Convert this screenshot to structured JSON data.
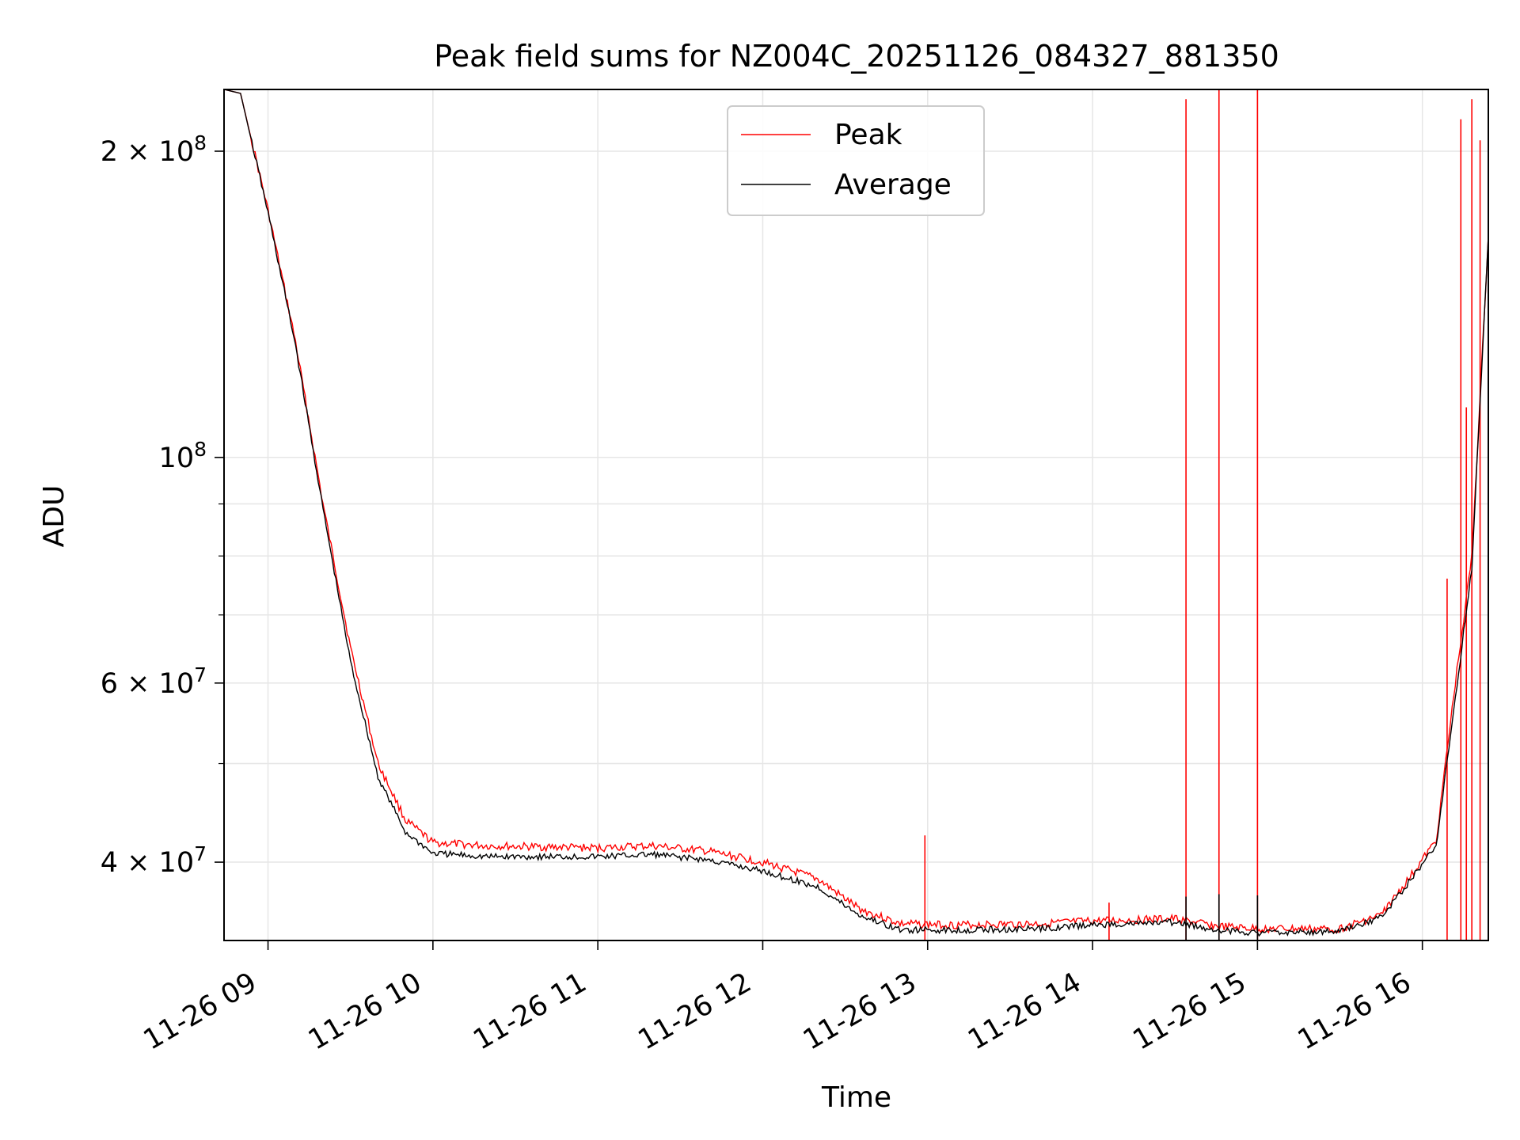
{
  "chart_data": {
    "type": "line",
    "title": "Peak field sums for NZ004C_20251126_084327_881350",
    "xlabel": "Time",
    "ylabel": "ADU",
    "y_scale": "log",
    "ylim": [
      33500000,
      230000000
    ],
    "xlim": [
      "2025-11-26 08:44",
      "2025-11-26 16:24"
    ],
    "grid": true,
    "legend_position": "upper center",
    "x_ticks": [
      {
        "value": "2025-11-26 09:00",
        "label": "11-26 09"
      },
      {
        "value": "2025-11-26 10:00",
        "label": "11-26 10"
      },
      {
        "value": "2025-11-26 11:00",
        "label": "11-26 11"
      },
      {
        "value": "2025-11-26 12:00",
        "label": "11-26 12"
      },
      {
        "value": "2025-11-26 13:00",
        "label": "11-26 13"
      },
      {
        "value": "2025-11-26 14:00",
        "label": "11-26 14"
      },
      {
        "value": "2025-11-26 15:00",
        "label": "11-26 15"
      },
      {
        "value": "2025-11-26 16:00",
        "label": "11-26 16"
      }
    ],
    "y_ticks": [
      {
        "value": 40000000,
        "mantissa": "4",
        "exponent": "7"
      },
      {
        "value": 60000000,
        "mantissa": "6",
        "exponent": "7"
      },
      {
        "value": 100000000,
        "mantissa": "",
        "exponent": "8"
      },
      {
        "value": 200000000,
        "mantissa": "2",
        "exponent": "8"
      }
    ],
    "y_minor_ticks": [
      50000000,
      70000000,
      80000000,
      90000000
    ],
    "series": [
      {
        "name": "Peak",
        "color": "#ff0000",
        "points": [
          [
            "2025-11-26 08:44",
            230000000
          ],
          [
            "2025-11-26 08:50",
            228000000
          ],
          [
            "2025-11-26 09:00",
            175000000
          ],
          [
            "2025-11-26 09:10",
            130000000
          ],
          [
            "2025-11-26 09:20",
            90000000
          ],
          [
            "2025-11-26 09:30",
            65000000
          ],
          [
            "2025-11-26 09:40",
            50000000
          ],
          [
            "2025-11-26 09:50",
            44000000
          ],
          [
            "2025-11-26 10:00",
            41800000
          ],
          [
            "2025-11-26 10:20",
            41500000
          ],
          [
            "2025-11-26 10:40",
            41400000
          ],
          [
            "2025-11-26 11:00",
            41300000
          ],
          [
            "2025-11-26 11:20",
            41500000
          ],
          [
            "2025-11-26 11:40",
            41000000
          ],
          [
            "2025-11-26 12:00",
            40000000
          ],
          [
            "2025-11-26 12:20",
            38500000
          ],
          [
            "2025-11-26 12:35",
            36000000
          ],
          [
            "2025-11-26 12:50",
            34800000
          ],
          [
            "2025-11-26 13:10",
            34700000
          ],
          [
            "2025-11-26 13:40",
            34800000
          ],
          [
            "2025-11-26 14:00",
            35000000
          ],
          [
            "2025-11-26 14:30",
            35200000
          ],
          [
            "2025-11-26 14:45",
            34600000
          ],
          [
            "2025-11-26 15:00",
            34400000
          ],
          [
            "2025-11-26 15:30",
            34400000
          ],
          [
            "2025-11-26 15:45",
            35500000
          ],
          [
            "2025-11-26 15:55",
            38500000
          ],
          [
            "2025-11-26 16:05",
            42000000
          ],
          [
            "2025-11-26 16:12",
            60000000
          ],
          [
            "2025-11-26 16:18",
            80000000
          ],
          [
            "2025-11-26 16:24",
            165000000
          ]
        ],
        "spikes": [
          [
            "2025-11-26 12:59",
            42500000
          ],
          [
            "2025-11-26 14:06",
            36500000
          ],
          [
            "2025-11-26 14:34",
            225000000
          ],
          [
            "2025-11-26 14:46",
            230000000
          ],
          [
            "2025-11-26 15:00",
            230000000
          ],
          [
            "2025-11-26 16:09",
            76000000
          ],
          [
            "2025-11-26 16:14",
            215000000
          ],
          [
            "2025-11-26 16:16",
            112000000
          ],
          [
            "2025-11-26 16:18",
            225000000
          ],
          [
            "2025-11-26 16:21",
            205000000
          ],
          [
            "2025-11-26 16:24",
            230000000
          ]
        ]
      },
      {
        "name": "Average",
        "color": "#000000",
        "points": [
          [
            "2025-11-26 08:44",
            230000000
          ],
          [
            "2025-11-26 08:50",
            228000000
          ],
          [
            "2025-11-26 09:00",
            174000000
          ],
          [
            "2025-11-26 09:10",
            129000000
          ],
          [
            "2025-11-26 09:20",
            89000000
          ],
          [
            "2025-11-26 09:30",
            63000000
          ],
          [
            "2025-11-26 09:40",
            48500000
          ],
          [
            "2025-11-26 09:50",
            42800000
          ],
          [
            "2025-11-26 10:00",
            40800000
          ],
          [
            "2025-11-26 10:20",
            40500000
          ],
          [
            "2025-11-26 10:40",
            40500000
          ],
          [
            "2025-11-26 11:00",
            40500000
          ],
          [
            "2025-11-26 11:20",
            40700000
          ],
          [
            "2025-11-26 11:40",
            40200000
          ],
          [
            "2025-11-26 12:00",
            39200000
          ],
          [
            "2025-11-26 12:20",
            37800000
          ],
          [
            "2025-11-26 12:35",
            35500000
          ],
          [
            "2025-11-26 12:50",
            34300000
          ],
          [
            "2025-11-26 13:10",
            34300000
          ],
          [
            "2025-11-26 13:40",
            34400000
          ],
          [
            "2025-11-26 14:00",
            34700000
          ],
          [
            "2025-11-26 14:30",
            34900000
          ],
          [
            "2025-11-26 14:45",
            34300000
          ],
          [
            "2025-11-26 15:00",
            34100000
          ],
          [
            "2025-11-26 15:30",
            34200000
          ],
          [
            "2025-11-26 15:45",
            35300000
          ],
          [
            "2025-11-26 15:55",
            38200000
          ],
          [
            "2025-11-26 16:05",
            41500000
          ],
          [
            "2025-11-26 16:12",
            58000000
          ],
          [
            "2025-11-26 16:18",
            78000000
          ],
          [
            "2025-11-26 16:24",
            165000000
          ]
        ],
        "spikes": [
          [
            "2025-11-26 14:34",
            37000000
          ],
          [
            "2025-11-26 14:46",
            37200000
          ],
          [
            "2025-11-26 15:00",
            37100000
          ]
        ]
      }
    ]
  }
}
